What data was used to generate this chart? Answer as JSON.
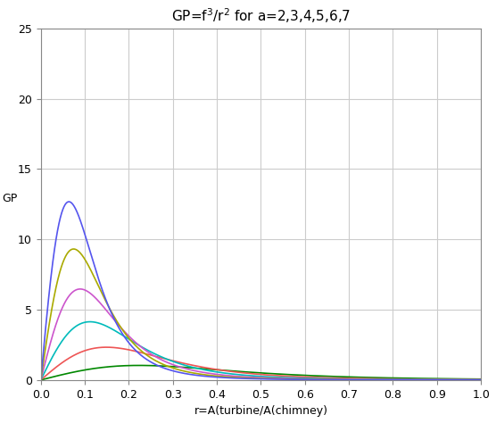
{
  "title": "GP=f³/r² for a=2,3,4,5,6,7",
  "xlabel": "r=A(turbine/A(chimney)",
  "ylabel": "GP",
  "xlim": [
    0,
    1
  ],
  "ylim": [
    0,
    25
  ],
  "xticks": [
    0,
    0.1,
    0.2,
    0.3,
    0.4,
    0.5,
    0.6,
    0.7,
    0.8,
    0.9,
    1
  ],
  "yticks": [
    0,
    5,
    10,
    15,
    20,
    25
  ],
  "a_values": [
    2,
    3,
    4,
    5,
    6,
    7
  ],
  "colors": [
    "#008800",
    "#ee5555",
    "#00bbbb",
    "#cc55cc",
    "#aaaa00",
    "#5555ee"
  ],
  "r_start": 0.0,
  "r_end": 1.0,
  "n_points": 3000,
  "background_color": "#ffffff",
  "grid_color": "#cccccc"
}
